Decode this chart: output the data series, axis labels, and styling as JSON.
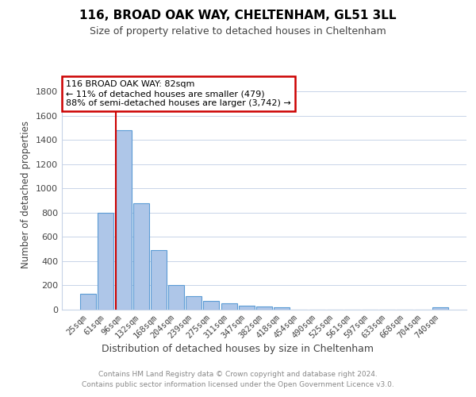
{
  "title": "116, BROAD OAK WAY, CHELTENHAM, GL51 3LL",
  "subtitle": "Size of property relative to detached houses in Cheltenham",
  "xlabel": "Distribution of detached houses by size in Cheltenham",
  "ylabel": "Number of detached properties",
  "categories": [
    "25sqm",
    "61sqm",
    "96sqm",
    "132sqm",
    "168sqm",
    "204sqm",
    "239sqm",
    "275sqm",
    "311sqm",
    "347sqm",
    "382sqm",
    "418sqm",
    "454sqm",
    "490sqm",
    "525sqm",
    "561sqm",
    "597sqm",
    "633sqm",
    "668sqm",
    "704sqm",
    "740sqm"
  ],
  "values": [
    130,
    800,
    1480,
    880,
    490,
    205,
    110,
    75,
    50,
    35,
    25,
    20,
    0,
    0,
    0,
    0,
    0,
    0,
    0,
    0,
    20
  ],
  "bar_color": "#aec6e8",
  "bar_edge_color": "#5b9bd5",
  "ylim": [
    0,
    1900
  ],
  "yticks": [
    0,
    200,
    400,
    600,
    800,
    1000,
    1200,
    1400,
    1600,
    1800
  ],
  "red_line_x": 1.585,
  "annotation_line1": "116 BROAD OAK WAY: 82sqm",
  "annotation_line2": "← 11% of detached houses are smaller (479)",
  "annotation_line3": "88% of semi-detached houses are larger (3,742) →",
  "annotation_box_color": "#ffffff",
  "annotation_box_edge": "#cc0000",
  "footer_line1": "Contains HM Land Registry data © Crown copyright and database right 2024.",
  "footer_line2": "Contains public sector information licensed under the Open Government Licence v3.0.",
  "background_color": "#ffffff",
  "grid_color": "#c8d4e8"
}
